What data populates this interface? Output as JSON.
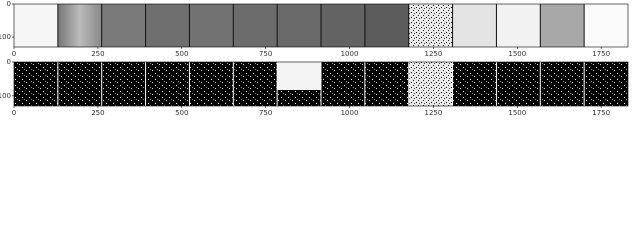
{
  "chart_data": [
    {
      "type": "image",
      "xlim": [
        0,
        1830
      ],
      "ylim": [
        130,
        0
      ],
      "xticks": [
        0,
        250,
        500,
        750,
        1000,
        1250,
        1500,
        1750
      ],
      "yticks": [
        0,
        100
      ]
    },
    {
      "type": "image",
      "xlim": [
        0,
        1830
      ],
      "ylim": [
        130,
        0
      ],
      "xticks": [
        0,
        250,
        500,
        750,
        1000,
        1250,
        1500,
        1750
      ],
      "yticks": [
        0,
        100
      ]
    }
  ]
}
